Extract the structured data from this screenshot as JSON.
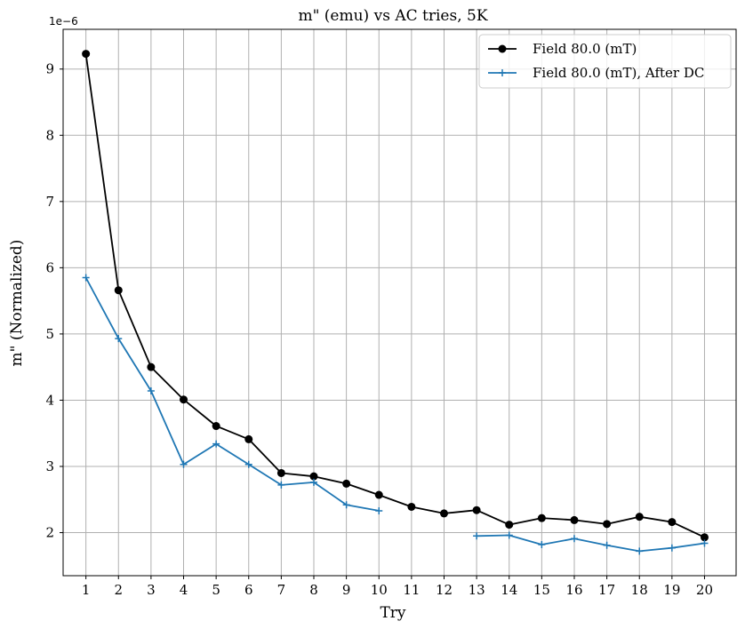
{
  "chart_data": {
    "type": "line",
    "title": "m\" (emu) vs  AC tries, 5K",
    "xlabel": "Try",
    "ylabel": "m\" (Normalized)",
    "y_scale_label": "1e−6",
    "x_ticks": [
      1,
      2,
      3,
      4,
      5,
      6,
      7,
      8,
      9,
      10,
      11,
      12,
      13,
      14,
      15,
      16,
      17,
      18,
      19,
      20
    ],
    "y_ticks": [
      2,
      3,
      4,
      5,
      6,
      7,
      8,
      9
    ],
    "xlim": [
      0.3,
      20.97
    ],
    "ylim": [
      1.35,
      9.6
    ],
    "grid": true,
    "legend_position": "top-right",
    "series": [
      {
        "name": "Field 80.0 (mT)",
        "color": "#000000",
        "marker": "circle",
        "x": [
          1,
          2,
          3,
          4,
          5,
          6,
          7,
          8,
          9,
          10,
          11,
          12,
          13,
          14,
          15,
          16,
          17,
          18,
          19,
          20
        ],
        "y": [
          9.23,
          5.66,
          4.5,
          4.01,
          3.61,
          3.41,
          2.9,
          2.85,
          2.74,
          2.57,
          2.39,
          2.29,
          2.34,
          2.12,
          2.22,
          2.19,
          2.13,
          2.24,
          2.16,
          1.93
        ]
      },
      {
        "name": "Field 80.0 (mT), After DC",
        "color": "#1f77b4",
        "marker": "plus",
        "x": [
          1,
          2,
          3,
          4,
          5,
          6,
          7,
          8,
          9,
          10,
          null,
          null,
          13,
          14,
          15,
          16,
          17,
          18,
          19,
          20
        ],
        "y": [
          5.85,
          4.93,
          4.14,
          3.03,
          3.34,
          3.03,
          2.72,
          2.76,
          2.42,
          2.33,
          null,
          null,
          1.95,
          1.96,
          1.82,
          1.91,
          1.81,
          1.72,
          1.77,
          1.84
        ]
      }
    ]
  }
}
